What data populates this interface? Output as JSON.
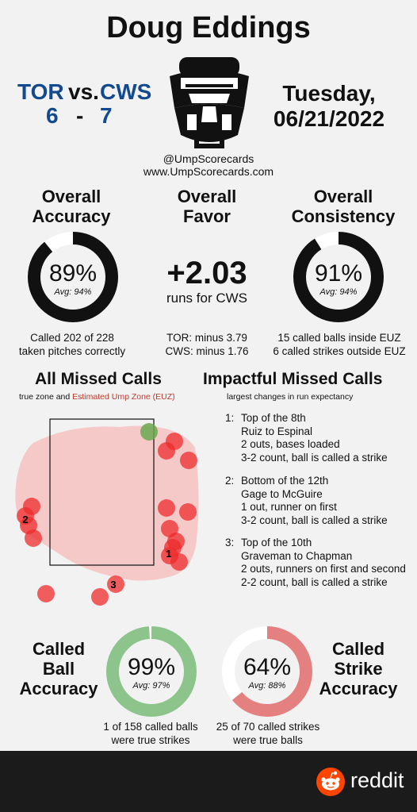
{
  "header": {
    "umpire": "Doug Eddings",
    "away_team": "TOR",
    "vs": "vs.",
    "home_team": "CWS",
    "away_score": "6",
    "dash": "-",
    "home_score": "7",
    "day": "Tuesday,",
    "date": "06/21/2022",
    "handle": "@UmpScorecards",
    "website": "www.UmpScorecards.com"
  },
  "accuracy": {
    "title_line1": "Overall",
    "title_line2": "Accuracy",
    "value": "89%",
    "avg": "Avg: 94%",
    "fraction": 0.89,
    "note_line1": "Called 202 of 228",
    "note_line2": "taken pitches correctly"
  },
  "favor": {
    "title_line1": "Overall",
    "title_line2": "Favor",
    "value": "+2.03",
    "sub": "runs for CWS",
    "note_line1": "TOR: minus 3.79",
    "note_line2": "CWS: minus 1.76"
  },
  "consistency": {
    "title_line1": "Overall",
    "title_line2": "Consistency",
    "value": "91%",
    "avg": "Avg: 94%",
    "fraction": 0.91,
    "note_line1": "15 called balls inside EUZ",
    "note_line2": "6 called strikes outside EUZ"
  },
  "missed": {
    "title": "All Missed Calls",
    "subtitle_prefix": "true zone and",
    "subtitle_euz": "Estimated Ump Zone (EUZ)",
    "labels": [
      "1",
      "2",
      "3"
    ]
  },
  "impactful": {
    "title": "Impactful Missed Calls",
    "subtitle": "largest changes in run expectancy",
    "calls": [
      {
        "num": "1:",
        "lines": [
          "Top of the 8th",
          "Ruiz to Espinal",
          "2 outs, bases loaded",
          "3-2 count, ball is called a strike"
        ]
      },
      {
        "num": "2:",
        "lines": [
          "Bottom of the 12th",
          "Gage to McGuire",
          "1 out, runner on first",
          "3-2 count, ball is called a strike"
        ]
      },
      {
        "num": "3:",
        "lines": [
          "Top of the 10th",
          "Graveman to Chapman",
          "2 outs, runners on first and second",
          "2-2 count, ball is called a strike"
        ]
      }
    ]
  },
  "ball_acc": {
    "title_line1": "Called",
    "title_line2": "Ball",
    "title_line3": "Accuracy",
    "value": "99%",
    "avg": "Avg: 97%",
    "fraction": 0.99,
    "note_line1": "1 of 158 called balls",
    "note_line2": "were true strikes"
  },
  "strike_acc": {
    "title_line1": "Called",
    "title_line2": "Strike",
    "title_line3": "Accuracy",
    "value": "64%",
    "avg": "Avg: 88%",
    "fraction": 0.64,
    "note_line1": "25 of 70 called strikes",
    "note_line2": "were true balls"
  },
  "footer": {
    "brand": "reddit"
  },
  "colors": {
    "blue": "#134a8e",
    "green_ring": "#8cc48c",
    "red_ring": "#e58080",
    "miss_red": "#ee2b2b",
    "euz_pink": "#f6c9c9"
  }
}
